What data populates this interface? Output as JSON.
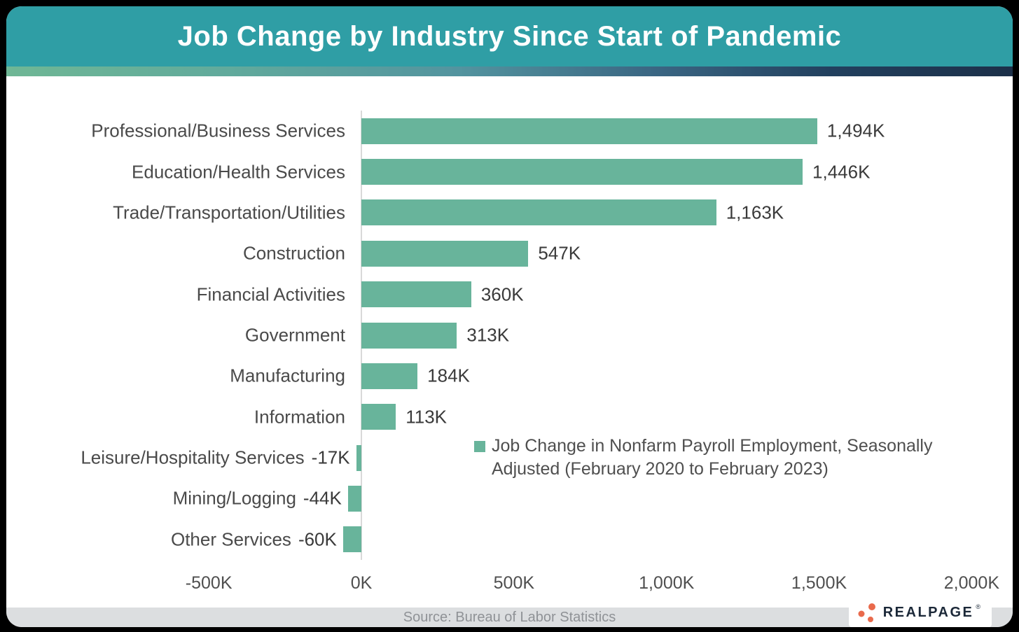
{
  "header": {
    "title": "Job Change by Industry Since Start of Pandemic"
  },
  "chart_data": {
    "type": "bar",
    "orientation": "horizontal",
    "title": "Job Change by Industry Since Start of Pandemic",
    "categories": [
      "Professional/Business Services",
      "Education/Health Services",
      "Trade/Transportation/Utilities",
      "Construction",
      "Financial Activities",
      "Government",
      "Manufacturing",
      "Information",
      "Leisure/Hospitality Services",
      "Mining/Logging",
      "Other Services"
    ],
    "values": [
      1494,
      1446,
      1163,
      547,
      360,
      313,
      184,
      113,
      -17,
      -44,
      -60
    ],
    "value_labels": [
      "1,494K",
      "1,446K",
      "1,163K",
      "547K",
      "360K",
      "313K",
      "184K",
      "113K",
      "-17K",
      "-44K",
      "-60K"
    ],
    "unit": "K",
    "xlim": [
      -500,
      2000
    ],
    "x_tick_values": [
      -500,
      0,
      500,
      1000,
      1500,
      2000
    ],
    "x_tick_labels": [
      "-500K",
      "0K",
      "500K",
      "1,000K",
      "1,500K",
      "2,000K"
    ],
    "grid": false,
    "legend": "Job Change in Nonfarm Payroll Employment, Seasonally Adjusted (February 2020 to February 2023)",
    "legend_position": "inside-lower-right",
    "bar_color": "#68B49B",
    "header_color": "#2F9EA5"
  },
  "footer": {
    "source": "Source: Bureau of Labor Statistics"
  },
  "logo": {
    "text": "REALPAGE",
    "registered_mark": "®",
    "dots_color": "#E96A4C"
  }
}
